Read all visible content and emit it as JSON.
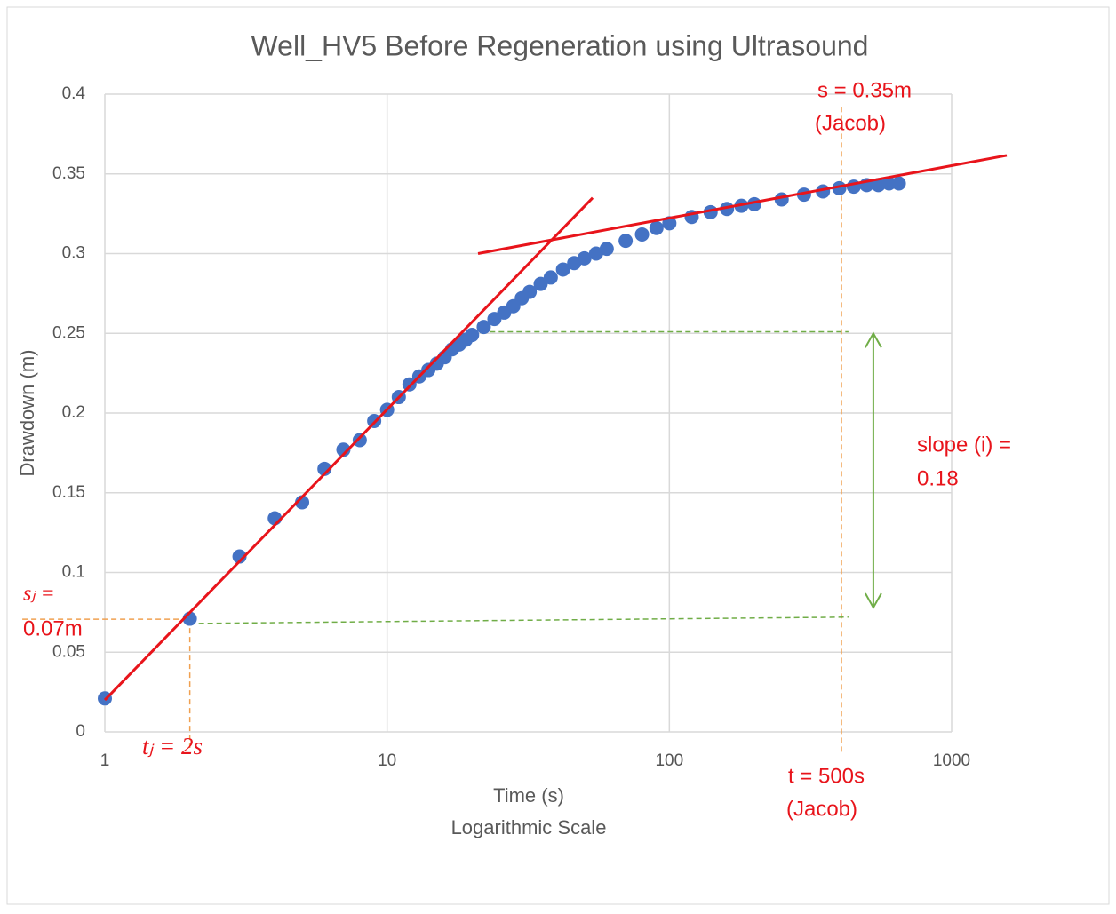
{
  "chart_data": {
    "type": "scatter",
    "title": "Well_HV5 Before Regeneration using Ultrasound",
    "x_label": [
      "Time (s)",
      "Logarithmic Scale"
    ],
    "y_label": "Drawdown (m)",
    "x_log": true,
    "grid": true,
    "xlim": [
      1,
      1000
    ],
    "xticks": [
      1,
      10,
      100,
      1000
    ],
    "ylim": [
      0,
      0.4
    ],
    "yticks": [
      0,
      0.05,
      0.1,
      0.15,
      0.2,
      0.25,
      0.3,
      0.35,
      0.4
    ],
    "series": [
      {
        "color": "#4472c4",
        "x": [
          1,
          2,
          3,
          4,
          5,
          6,
          7,
          8,
          9,
          10,
          11,
          12,
          13,
          14,
          15,
          16,
          17,
          18,
          19,
          20,
          22,
          24,
          26,
          28,
          30,
          32,
          35,
          38,
          42,
          46,
          50,
          55,
          60,
          70,
          80,
          90,
          100,
          120,
          140,
          160,
          180,
          200,
          250,
          300,
          350,
          400,
          450,
          500,
          550,
          600,
          650
        ],
        "y": [
          0.021,
          0.071,
          0.11,
          0.134,
          0.144,
          0.165,
          0.177,
          0.183,
          0.195,
          0.202,
          0.21,
          0.218,
          0.223,
          0.227,
          0.231,
          0.235,
          0.24,
          0.243,
          0.246,
          0.249,
          0.254,
          0.259,
          0.263,
          0.267,
          0.272,
          0.276,
          0.281,
          0.285,
          0.29,
          0.294,
          0.297,
          0.3,
          0.303,
          0.308,
          0.312,
          0.316,
          0.319,
          0.323,
          0.326,
          0.328,
          0.33,
          0.331,
          0.334,
          0.337,
          0.339,
          0.341,
          0.342,
          0.343,
          0.343,
          0.344,
          0.344
        ]
      }
    ],
    "trendlines": [
      {
        "color": "#e8141b",
        "x": [
          1,
          53.5
        ],
        "y": [
          0.02,
          0.335
        ]
      },
      {
        "color": "#e8141b",
        "x": [
          21,
          1567
        ],
        "y": [
          0.3,
          0.3616
        ]
      }
    ],
    "guides": [
      {
        "color": "#f0a050",
        "x": [
          0.51,
          2
        ],
        "y": [
          0.0707,
          0.0707
        ]
      },
      {
        "color": "#f0a050",
        "x": [
          2,
          2
        ],
        "y": [
          0.0707,
          -0.01
        ]
      },
      {
        "color": "#f0a050",
        "x": [
          407,
          407
        ],
        "y": [
          0.392,
          -0.014
        ]
      },
      {
        "color": "#70ad47",
        "x": [
          20,
          431
        ],
        "y": [
          0.251,
          0.251
        ]
      },
      {
        "color": "#70ad47",
        "x": [
          2,
          431
        ],
        "y": [
          0.068,
          0.072
        ]
      }
    ],
    "arrow": {
      "color": "#70ad47",
      "x": 528,
      "y": [
        0.25,
        0.078
      ]
    },
    "annotations": [
      "s = 0.35m",
      "(Jacob)",
      "slope (i) =",
      "0.18",
      "sⱼ =",
      "0.07m",
      "tⱼ = 2s",
      "t = 500s",
      "(Jacob)"
    ]
  }
}
